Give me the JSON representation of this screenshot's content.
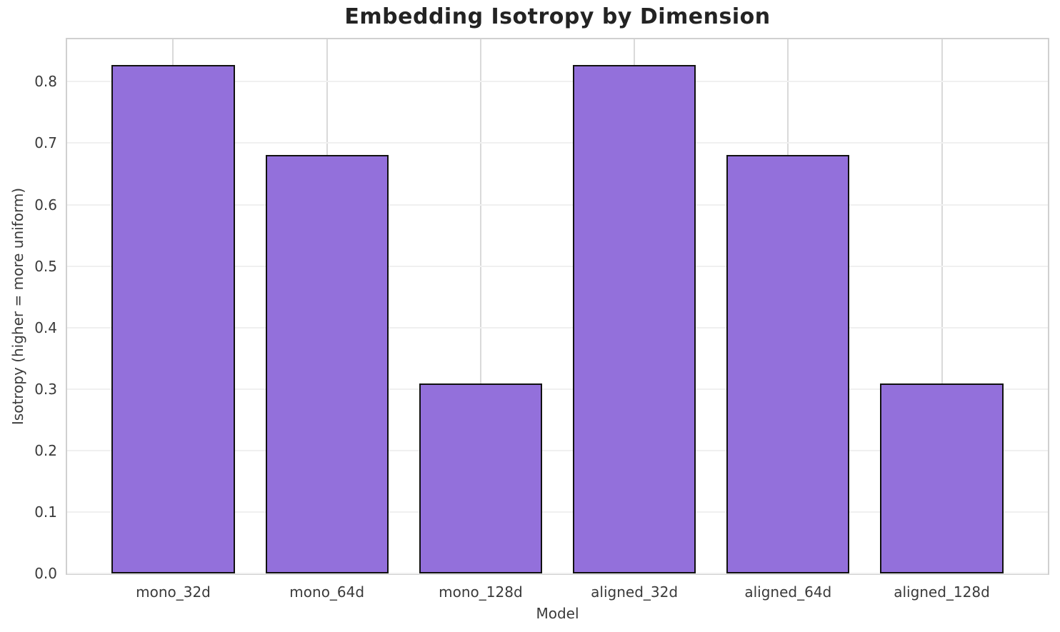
{
  "chart_data": {
    "type": "bar",
    "title": "Embedding Isotropy by Dimension",
    "xlabel": "Model",
    "ylabel": "Isotropy (higher = more uniform)",
    "categories": [
      "mono_32d",
      "mono_64d",
      "mono_128d",
      "aligned_32d",
      "aligned_64d",
      "aligned_128d"
    ],
    "values": [
      0.827,
      0.681,
      0.309,
      0.827,
      0.681,
      0.309
    ],
    "ytick_labels": [
      "0.0",
      "0.1",
      "0.2",
      "0.3",
      "0.4",
      "0.5",
      "0.6",
      "0.7",
      "0.8"
    ],
    "ytick_values": [
      0.0,
      0.1,
      0.2,
      0.3,
      0.4,
      0.5,
      0.6,
      0.7,
      0.8
    ],
    "ylim": [
      0,
      0.869
    ],
    "grid": true,
    "legend_position": "none",
    "bar_color": "#9370db",
    "bar_edge_color": "#111111"
  }
}
